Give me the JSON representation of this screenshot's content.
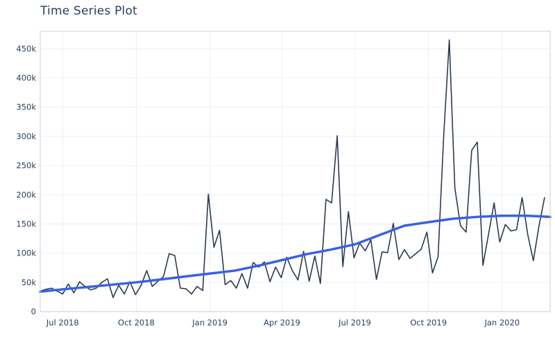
{
  "chart_data": {
    "type": "line",
    "title": "Time Series Plot",
    "xlabel": "",
    "ylabel": "",
    "x_range": [
      "2018-06-03",
      "2020-03-01"
    ],
    "ylim": [
      0,
      480000
    ],
    "grid": true,
    "legend": "none",
    "colors": {
      "raw": "#2a3a4e",
      "trend": "#3a60e6",
      "grid": "#eceff3",
      "frame": "#c8ccd2"
    },
    "x_ticks": [
      {
        "label": "Jul 2018",
        "date": "2018-07-01"
      },
      {
        "label": "Oct 2018",
        "date": "2018-10-01"
      },
      {
        "label": "Jan 2019",
        "date": "2019-01-01"
      },
      {
        "label": "Apr 2019",
        "date": "2019-04-01"
      },
      {
        "label": "Jul 2019",
        "date": "2019-07-01"
      },
      {
        "label": "Oct 2019",
        "date": "2019-10-01"
      },
      {
        "label": "Jan 2020",
        "date": "2020-01-01"
      }
    ],
    "y_ticks": [
      {
        "label": "0",
        "value": 0
      },
      {
        "label": "50k",
        "value": 50000
      },
      {
        "label": "100k",
        "value": 100000
      },
      {
        "label": "150k",
        "value": 150000
      },
      {
        "label": "200k",
        "value": 200000
      },
      {
        "label": "250k",
        "value": 250000
      },
      {
        "label": "300k",
        "value": 300000
      },
      {
        "label": "350k",
        "value": 350000
      },
      {
        "label": "400k",
        "value": 400000
      },
      {
        "label": "450k",
        "value": 450000
      }
    ],
    "series": [
      {
        "role": "raw",
        "points": [
          [
            "2018-06-03",
            35000
          ],
          [
            "2018-06-10",
            38000
          ],
          [
            "2018-06-17",
            40000
          ],
          [
            "2018-06-24",
            35000
          ],
          [
            "2018-07-01",
            30000
          ],
          [
            "2018-07-08",
            47000
          ],
          [
            "2018-07-15",
            32000
          ],
          [
            "2018-07-22",
            51000
          ],
          [
            "2018-07-29",
            43000
          ],
          [
            "2018-08-05",
            37000
          ],
          [
            "2018-08-12",
            40000
          ],
          [
            "2018-08-19",
            50000
          ],
          [
            "2018-08-26",
            56000
          ],
          [
            "2018-09-02",
            24000
          ],
          [
            "2018-09-09",
            45000
          ],
          [
            "2018-09-16",
            30000
          ],
          [
            "2018-09-23",
            51000
          ],
          [
            "2018-09-30",
            29000
          ],
          [
            "2018-10-07",
            45000
          ],
          [
            "2018-10-14",
            70000
          ],
          [
            "2018-10-21",
            43000
          ],
          [
            "2018-10-28",
            52000
          ],
          [
            "2018-11-04",
            60000
          ],
          [
            "2018-11-11",
            99000
          ],
          [
            "2018-11-18",
            96000
          ],
          [
            "2018-11-25",
            40000
          ],
          [
            "2018-12-02",
            39000
          ],
          [
            "2018-12-09",
            30000
          ],
          [
            "2018-12-16",
            43000
          ],
          [
            "2018-12-23",
            36000
          ],
          [
            "2018-12-30",
            201000
          ],
          [
            "2019-01-06",
            110000
          ],
          [
            "2019-01-13",
            139000
          ],
          [
            "2019-01-20",
            46000
          ],
          [
            "2019-01-27",
            53000
          ],
          [
            "2019-02-03",
            40000
          ],
          [
            "2019-02-10",
            65000
          ],
          [
            "2019-02-17",
            40000
          ],
          [
            "2019-02-24",
            84000
          ],
          [
            "2019-03-03",
            76000
          ],
          [
            "2019-03-10",
            85000
          ],
          [
            "2019-03-17",
            51000
          ],
          [
            "2019-03-24",
            76000
          ],
          [
            "2019-03-31",
            58000
          ],
          [
            "2019-04-07",
            93000
          ],
          [
            "2019-04-14",
            70000
          ],
          [
            "2019-04-21",
            54000
          ],
          [
            "2019-04-28",
            103000
          ],
          [
            "2019-05-05",
            52000
          ],
          [
            "2019-05-12",
            95000
          ],
          [
            "2019-05-19",
            48000
          ],
          [
            "2019-05-26",
            192000
          ],
          [
            "2019-06-02",
            186000
          ],
          [
            "2019-06-09",
            301000
          ],
          [
            "2019-06-16",
            77000
          ],
          [
            "2019-06-23",
            171000
          ],
          [
            "2019-06-30",
            92000
          ],
          [
            "2019-07-07",
            117000
          ],
          [
            "2019-07-14",
            104000
          ],
          [
            "2019-07-21",
            123000
          ],
          [
            "2019-07-28",
            55000
          ],
          [
            "2019-08-04",
            102000
          ],
          [
            "2019-08-11",
            101000
          ],
          [
            "2019-08-18",
            151000
          ],
          [
            "2019-08-25",
            89000
          ],
          [
            "2019-09-01",
            106000
          ],
          [
            "2019-09-08",
            91000
          ],
          [
            "2019-09-15",
            99000
          ],
          [
            "2019-09-22",
            107000
          ],
          [
            "2019-09-29",
            136000
          ],
          [
            "2019-10-06",
            66000
          ],
          [
            "2019-10-13",
            94000
          ],
          [
            "2019-10-20",
            300000
          ],
          [
            "2019-10-27",
            465000
          ],
          [
            "2019-11-03",
            211000
          ],
          [
            "2019-11-10",
            147000
          ],
          [
            "2019-11-17",
            136000
          ],
          [
            "2019-11-24",
            276000
          ],
          [
            "2019-12-01",
            290000
          ],
          [
            "2019-12-08",
            79000
          ],
          [
            "2019-12-15",
            132000
          ],
          [
            "2019-12-22",
            186000
          ],
          [
            "2019-12-29",
            119000
          ],
          [
            "2020-01-05",
            149000
          ],
          [
            "2020-01-12",
            138000
          ],
          [
            "2020-01-19",
            140000
          ],
          [
            "2020-01-26",
            195000
          ],
          [
            "2020-02-02",
            132000
          ],
          [
            "2020-02-09",
            87000
          ],
          [
            "2020-02-16",
            146000
          ],
          [
            "2020-02-23",
            195000
          ]
        ]
      },
      {
        "role": "trend",
        "points": [
          [
            "2018-06-03",
            34000
          ],
          [
            "2018-07-01",
            38000
          ],
          [
            "2018-08-01",
            42000
          ],
          [
            "2018-09-01",
            46000
          ],
          [
            "2018-10-01",
            50000
          ],
          [
            "2018-11-01",
            55000
          ],
          [
            "2018-12-01",
            60000
          ],
          [
            "2019-01-01",
            65000
          ],
          [
            "2019-02-01",
            70000
          ],
          [
            "2019-03-01",
            78000
          ],
          [
            "2019-04-01",
            88000
          ],
          [
            "2019-05-01",
            98000
          ],
          [
            "2019-06-01",
            106000
          ],
          [
            "2019-07-01",
            115000
          ],
          [
            "2019-08-01",
            131000
          ],
          [
            "2019-09-01",
            147000
          ],
          [
            "2019-10-01",
            153000
          ],
          [
            "2019-11-01",
            159000
          ],
          [
            "2019-12-01",
            162000
          ],
          [
            "2020-01-01",
            164000
          ],
          [
            "2020-02-01",
            164000
          ],
          [
            "2020-03-01",
            162000
          ]
        ]
      }
    ]
  }
}
